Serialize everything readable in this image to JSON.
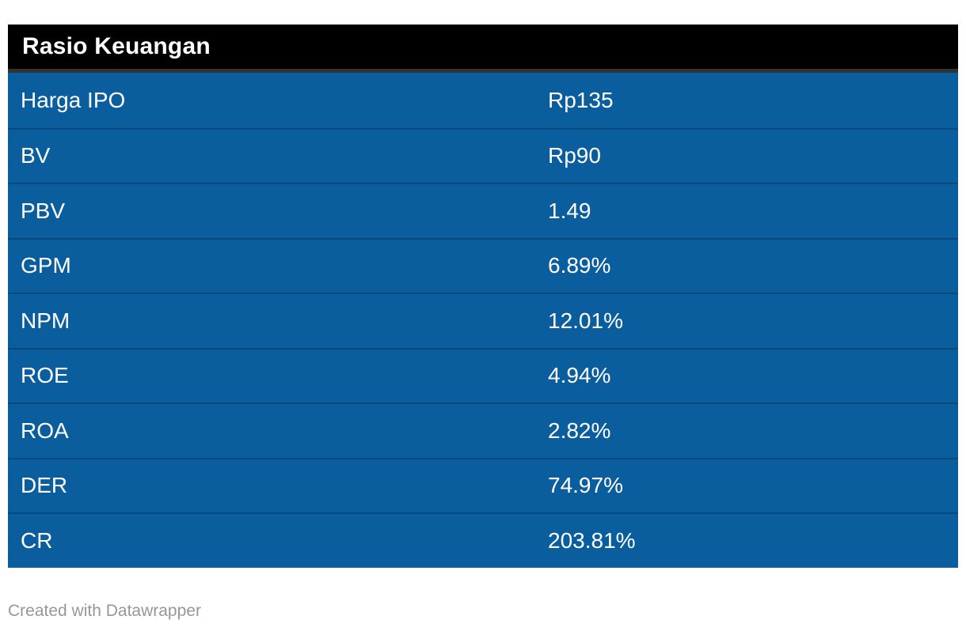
{
  "chart_data": {
    "type": "table",
    "title": "Rasio Keuangan",
    "rows": [
      {
        "label": "Harga IPO",
        "value": "Rp135"
      },
      {
        "label": "BV",
        "value": "Rp90"
      },
      {
        "label": "PBV",
        "value": "1.49"
      },
      {
        "label": "GPM",
        "value": "6.89%"
      },
      {
        "label": "NPM",
        "value": "12.01%"
      },
      {
        "label": "ROE",
        "value": "4.94%"
      },
      {
        "label": "ROA",
        "value": "2.82%"
      },
      {
        "label": "DER",
        "value": "74.97%"
      },
      {
        "label": "CR",
        "value": "203.81%"
      }
    ],
    "layout_hints": {
      "header_position": "top",
      "grid": "horizontal-dividers",
      "value_column_alignment": "left"
    }
  },
  "footer": {
    "credit": "Created with Datawrapper"
  },
  "colors": {
    "header_bg": "#000000",
    "header_border": "#333333",
    "header_text": "#ffffff",
    "row_bg": "#0b5e9e",
    "row_divider": "#09497c",
    "row_text": "#ffffff",
    "credit_text": "#979797",
    "page_bg": "#ffffff"
  }
}
